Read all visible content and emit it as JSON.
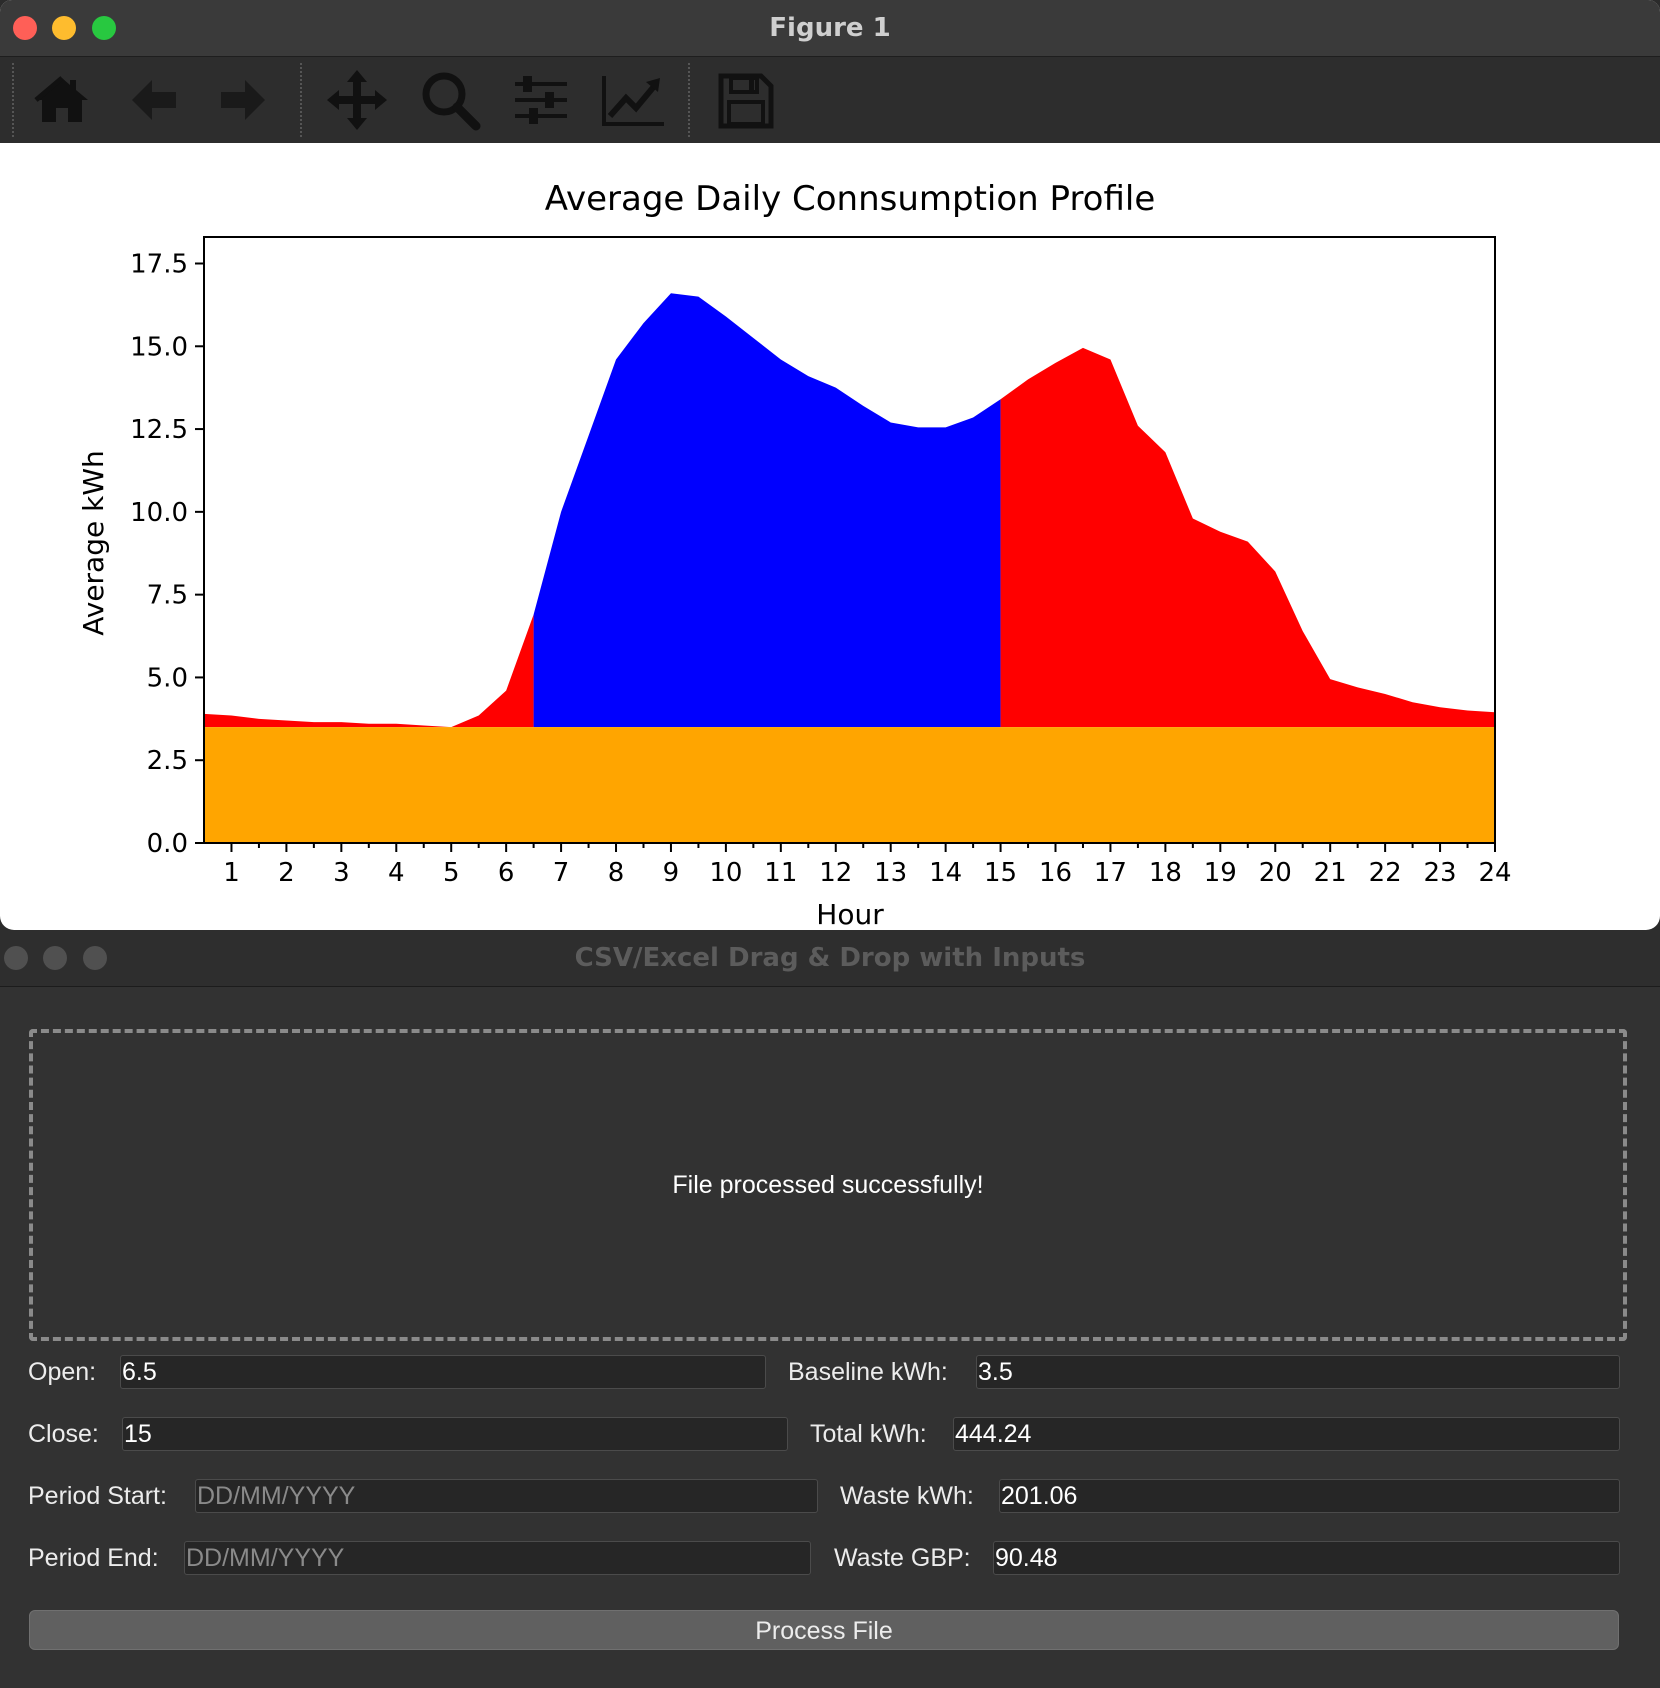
{
  "figure_window": {
    "title": "Figure 1",
    "toolbar": [
      "home-icon",
      "back-arrow-icon",
      "forward-arrow-icon",
      "pan-move-icon",
      "zoom-magnifier-icon",
      "configure-subplots-icon",
      "edit-axis-icon",
      "save-disk-icon"
    ]
  },
  "chart_data": {
    "type": "area",
    "title": "Average Daily Connsumption Profile",
    "xlabel": "Hour",
    "ylabel": "Average kWh",
    "xlim": [
      0.5,
      24
    ],
    "ylim": [
      0,
      18.3
    ],
    "xticks": [
      "1",
      "2",
      "3",
      "4",
      "5",
      "6",
      "7",
      "8",
      "9",
      "10",
      "11",
      "12",
      "13",
      "14",
      "15",
      "16",
      "17",
      "18",
      "19",
      "20",
      "21",
      "22",
      "23",
      "24"
    ],
    "yticks": [
      "0.0",
      "2.5",
      "5.0",
      "7.5",
      "10.0",
      "12.5",
      "15.0",
      "17.5"
    ],
    "baseline": 3.5,
    "open": 6.5,
    "close": 15,
    "colors": {
      "baseline": "#ffa500",
      "waste": "#ff0000",
      "operating": "#0000ff"
    },
    "x": [
      0.5,
      1,
      1.5,
      2,
      2.5,
      3,
      3.5,
      4,
      4.5,
      5,
      5.5,
      6,
      6.5,
      7,
      7.5,
      8,
      8.5,
      9,
      9.5,
      10,
      10.5,
      11,
      11.5,
      12,
      12.5,
      13,
      13.5,
      14,
      14.5,
      15,
      15.5,
      16,
      16.5,
      17,
      17.5,
      18,
      18.5,
      19,
      19.5,
      20,
      20.5,
      21,
      21.5,
      22,
      22.5,
      23,
      23.5,
      24
    ],
    "y": [
      3.9,
      3.85,
      3.75,
      3.7,
      3.65,
      3.65,
      3.6,
      3.6,
      3.55,
      3.5,
      3.85,
      4.6,
      6.9,
      10.0,
      12.3,
      14.6,
      15.7,
      16.6,
      16.5,
      15.9,
      15.25,
      14.6,
      14.1,
      13.75,
      13.2,
      12.7,
      12.55,
      12.55,
      12.85,
      13.4,
      14.0,
      14.5,
      14.95,
      14.6,
      12.6,
      11.8,
      9.8,
      9.4,
      9.1,
      8.2,
      6.4,
      4.95,
      4.7,
      4.5,
      4.25,
      4.1,
      4.0,
      3.95
    ]
  },
  "app_window": {
    "title": "CSV/Excel Drag & Drop with Inputs",
    "drop_message": "File processed successfully!",
    "open_label": "Open:",
    "open_value": "6.5",
    "close_label": "Close:",
    "close_value": "15",
    "period_start_label": "Period Start:",
    "period_start_placeholder": "DD/MM/YYYY",
    "period_end_label": "Period End:",
    "period_end_placeholder": "DD/MM/YYYY",
    "baseline_label": "Baseline kWh:",
    "baseline_value": "3.5",
    "total_label": "Total kWh:",
    "total_value": "444.24",
    "waste_kwh_label": "Waste kWh:",
    "waste_kwh_value": "201.06",
    "waste_gbp_label": "Waste GBP:",
    "waste_gbp_value": "90.48",
    "process_button": "Process File"
  }
}
